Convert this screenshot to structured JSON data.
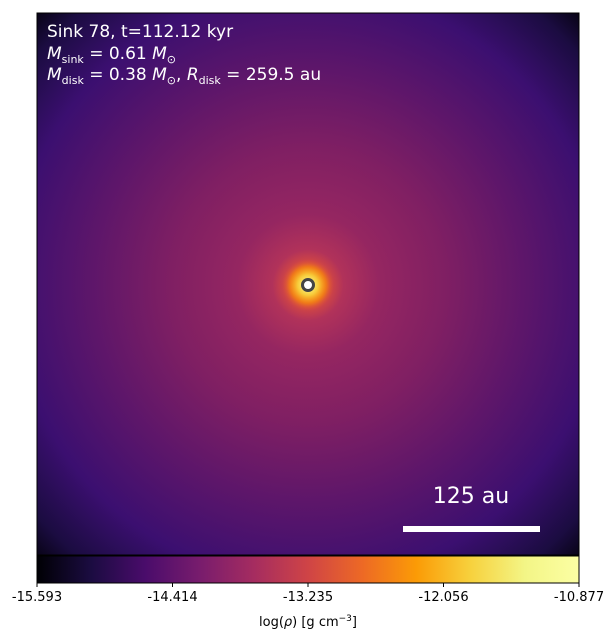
{
  "chart_data": {
    "type": "heatmap",
    "annotations": {
      "line1": "Sink 78, t=112.12 kyr",
      "line2": {
        "sym": "M",
        "sub": "sink",
        "eq": " = 0.61 ",
        "unit_sym": "M",
        "unit_sub": "⊙"
      },
      "line3": {
        "sym1": "M",
        "sub1": "disk",
        "eq1": " = 0.38 ",
        "unit_sym": "M",
        "unit_sub": "⊙",
        "sep": ", ",
        "sym2": "R",
        "sub2": "disk",
        "eq2": " = 259.5 au"
      }
    },
    "scale_bar": {
      "label": "125 au",
      "length_au": 125
    },
    "sink_marker": {
      "x_au": 0,
      "y_au": 0
    },
    "colorbar": {
      "colormap": "inferno",
      "min": -15.593,
      "max": -10.877,
      "ticks": [
        "-15.593",
        "-14.414",
        "-13.235",
        "-12.056",
        "-10.877"
      ],
      "label_prefix": "log(",
      "label_rho": "ρ",
      "label_mid": ") [g cm",
      "label_exp": "−3",
      "label_suffix": "]"
    },
    "colors": {
      "scale_bar": "#ffffff",
      "annotation_text": "#ffffff",
      "sink_ring": "#444444",
      "sink_fill": "#ffffff"
    }
  }
}
